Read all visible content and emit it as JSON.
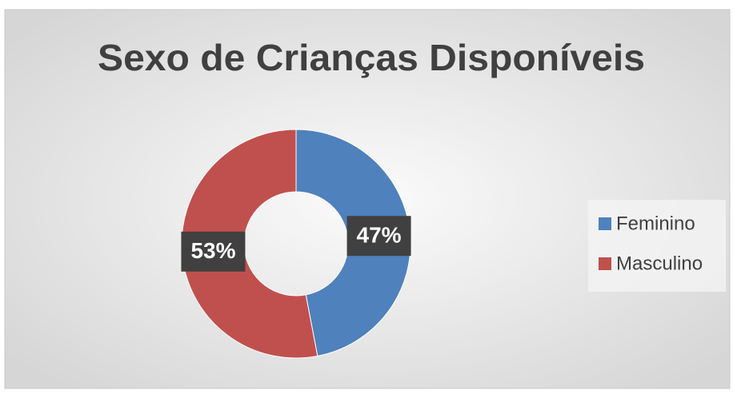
{
  "chart_data": {
    "type": "donut",
    "title": "Sexo de Crianças Disponíveis",
    "categories": [
      "Feminino",
      "Masculino"
    ],
    "values": [
      47,
      53
    ],
    "value_labels": [
      "47%",
      "53%"
    ],
    "colors": [
      "#4f81bd",
      "#c0504d"
    ],
    "legend": "right"
  }
}
